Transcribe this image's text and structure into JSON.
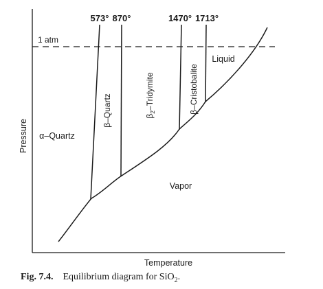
{
  "diagram": {
    "temperatures": [
      "573°",
      "870°",
      "1470°",
      "1713°"
    ],
    "pressure_line_label": "1 atm",
    "axis_labels": {
      "y": "Pressure",
      "x": "Temperature"
    },
    "phases": {
      "alpha_quartz": "α–Quartz",
      "beta_quartz": "β–Quartz",
      "beta2_tridymite_prefix": "β",
      "beta2_tridymite_sub": "2",
      "beta2_tridymite_suffix": "–Tridymite",
      "beta_cristobalite": "β–Cristobalite",
      "liquid": "Liquid",
      "vapor": "Vapor"
    }
  },
  "caption": {
    "figure_number": "Fig. 7.4.",
    "text_prefix": "Equilibrium diagram for SiO",
    "text_sub": "2",
    "text_suffix": "."
  }
}
